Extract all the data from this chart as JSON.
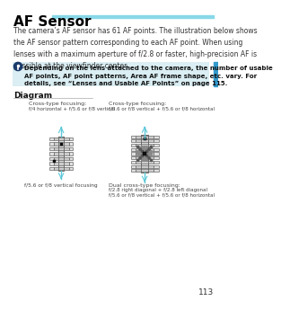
{
  "title": "AF Sensor",
  "title_color": "#000000",
  "title_bar_color": "#88d8e8",
  "body_text": "The camera’s AF sensor has 61 AF points. The illustration below shows\nthe AF sensor pattern corresponding to each AF point. When using\nlenses with a maximum aperture of f/2.8 or faster, high-precision AF is\npossible at the viewfinder center.",
  "note_bg_color": "#daeef3",
  "note_icon_color": "#1a5fa8",
  "note_text": "Depending on the lens attached to the camera, the number of usable\nAF points, AF point patterns, Area AF frame shape, etc. vary. For\ndetails, see “Lenses and Usable AF Points” on page 115.",
  "diagram_title": "Diagram",
  "label_top_left1": "Cross-type focusing:",
  "label_top_left2": "f/4 horizontal + f/5.6 or f/8 vertical",
  "label_top_right1": "Cross-type focusing:",
  "label_top_right2": "f/5.6 or f/8 vertical + f/5.6 or f/8 horizontal",
  "label_bot_left": "f/5.6 or f/8 vertical focusing",
  "label_bot_right1": "Dual cross-type focusing:",
  "label_bot_right2": "f/2.8 right diagonal + f/2.8 left diagonal",
  "label_bot_right3": "f/5.6 or f/8 vertical + f/5.6 or f/8 horizontal",
  "page_number": "113",
  "sidebar_color": "#3399cc",
  "bg_color": "#ffffff",
  "text_color": "#333333",
  "diagram_line_color": "#666666",
  "diagram_fill_color": "#e0e0e0",
  "diagram_dark_fill": "#cccccc",
  "cyan_color": "#5bc8d8"
}
